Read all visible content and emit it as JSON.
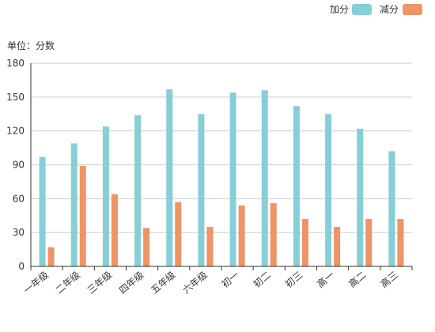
{
  "chart_data": {
    "type": "bar",
    "unit_label": "单位：分数",
    "categories": [
      "一年级",
      "二年级",
      "三年级",
      "四年级",
      "五年级",
      "六年级",
      "初一",
      "初二",
      "初三",
      "高一",
      "高二",
      "高三"
    ],
    "series": [
      {
        "name": "加分",
        "color": "#86cfd6",
        "values": [
          97,
          109,
          124,
          134,
          157,
          135,
          154,
          156,
          142,
          135,
          122,
          102
        ]
      },
      {
        "name": "减分",
        "color": "#ee9466",
        "values": [
          17,
          89,
          64,
          34,
          57,
          35,
          54,
          56,
          42,
          35,
          42,
          42
        ]
      }
    ],
    "ylim": [
      0,
      180
    ],
    "yticks": [
      0,
      30,
      60,
      90,
      120,
      150,
      180
    ],
    "grid": true,
    "legend_position": "top-right",
    "xlabel": "",
    "ylabel": ""
  }
}
